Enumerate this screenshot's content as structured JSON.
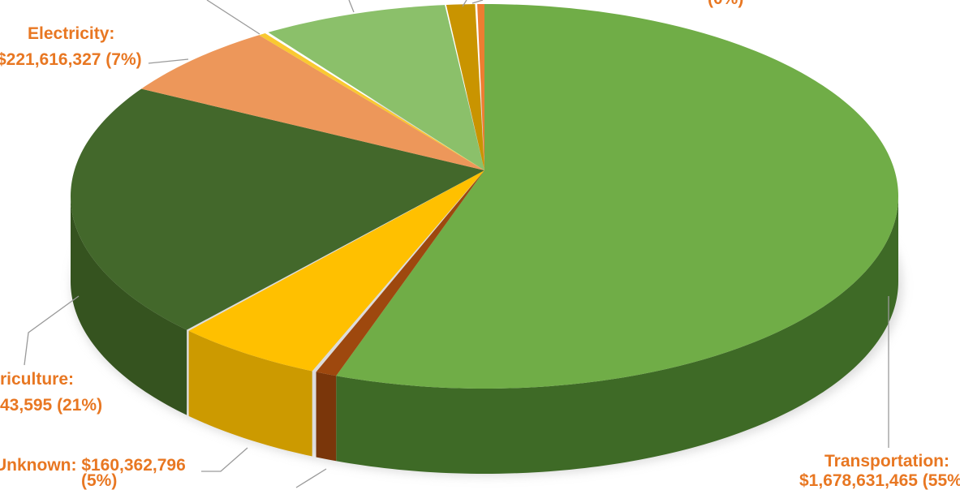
{
  "chart_data": {
    "type": "pie",
    "style": "3d",
    "slices": [
      {
        "label_lines": [
          "Transportation:",
          "$1,678,631,465 (55%"
        ],
        "percent": 55,
        "color": "#70AD47",
        "side": "#3E6A26"
      },
      {
        "label_lines": [],
        "percent": null,
        "color": "#9E480E",
        "side": "#7A360A"
      },
      {
        "label_lines": [
          "Unknown: $160,362,796",
          "(5%)"
        ],
        "percent": 5,
        "color": "#FFC000",
        "side": "#CC9A00"
      },
      {
        "label_lines": [
          "riculture:",
          "43,595 (21%)"
        ],
        "percent": 21,
        "color": "#43682B",
        "side": "#35531F"
      },
      {
        "label_lines": [
          "Electricity:",
          "$221,616,327 (7%)"
        ],
        "percent": 7,
        "color": "#ED975A",
        "side": "#C0703A"
      },
      {
        "label_lines": [],
        "percent": null,
        "color": "#F9C931",
        "side": "#D0A020"
      },
      {
        "label_lines": [],
        "percent": null,
        "color": "#8BC06A",
        "side": "#5E8E44"
      },
      {
        "label_lines": [],
        "percent": null,
        "color": "#C99400",
        "side": "#9E7400"
      },
      {
        "label_lines": [
          "(0%)"
        ],
        "percent": 0,
        "color": "#ED7D31",
        "side": "#B85E20"
      }
    ],
    "label_color": "#E87722",
    "legend": "none"
  }
}
